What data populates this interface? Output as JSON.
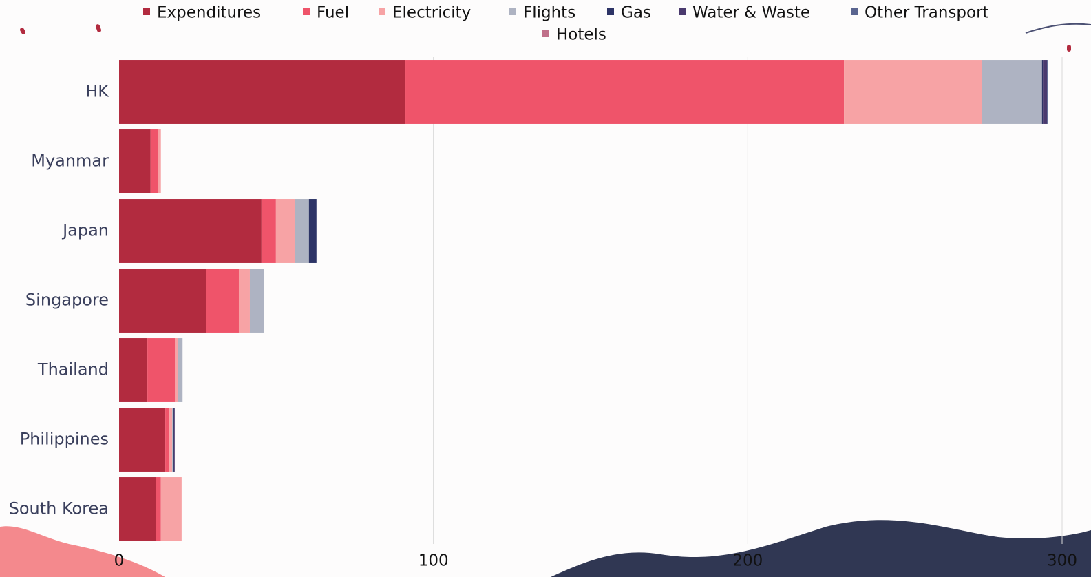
{
  "chart_data": {
    "type": "stacked-bar-horizontal",
    "categories": [
      "HK",
      "Myanmar",
      "Japan",
      "Singapore",
      "Thailand",
      "Philippines",
      "South Korea"
    ],
    "series": [
      {
        "name": "Expenditures",
        "color": "#b22b3f",
        "values": [
          91.1,
          10,
          45.3,
          27.8,
          9,
          14.7,
          11.8
        ]
      },
      {
        "name": "Fuel",
        "color": "#ef546a",
        "values": [
          139.5,
          2.4,
          4.6,
          10.3,
          8.8,
          1.3,
          1.5
        ]
      },
      {
        "name": "Electricity",
        "color": "#f7a3a5",
        "values": [
          44,
          0.9,
          6.1,
          3.5,
          0.9,
          0.9,
          6.6
        ]
      },
      {
        "name": "Flights",
        "color": "#aeb3c2",
        "values": [
          19,
          0,
          4.4,
          4.6,
          1.5,
          0.4,
          0
        ]
      },
      {
        "name": "Gas",
        "color": "#2d3466",
        "values": [
          0.3,
          0,
          2.4,
          0,
          0,
          0.2,
          0
        ]
      },
      {
        "name": "Water & Waste",
        "color": "#4a3a6e",
        "values": [
          1.3,
          0,
          0,
          0,
          0,
          0.2,
          0
        ]
      },
      {
        "name": "Other Transport",
        "color": "#5a6590",
        "values": [
          0.3,
          0,
          0,
          0,
          0,
          0,
          0
        ]
      },
      {
        "name": "Hotels",
        "color": "#c0708a",
        "values": [
          0,
          0,
          0,
          0,
          0,
          0,
          0
        ]
      }
    ],
    "xlim": [
      0,
      300
    ],
    "xticks": [
      0,
      100,
      200,
      300
    ],
    "grid": true,
    "legend": "top"
  }
}
